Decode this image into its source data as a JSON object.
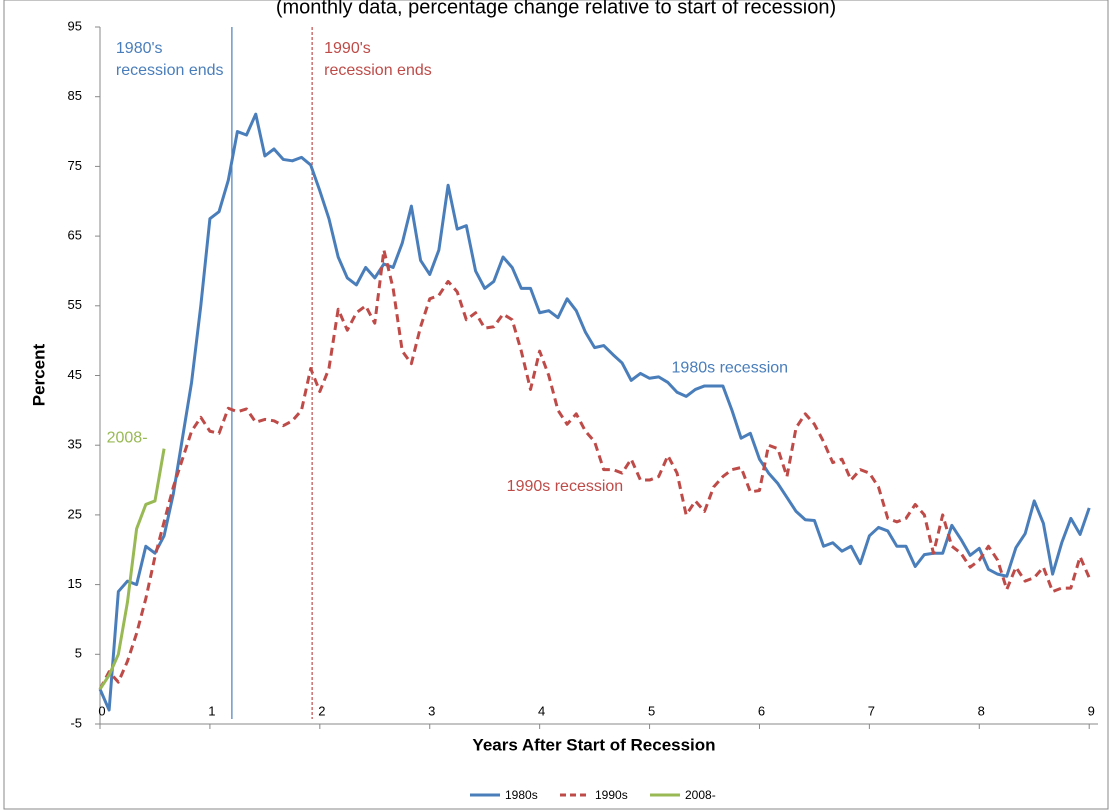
{
  "chart_data": {
    "type": "line",
    "subtitle": "(monthly data, percentage change relative to start of recession)",
    "y_label": "Percent",
    "x_label": "Years After Start of Recession",
    "ylim": [
      -5,
      95
    ],
    "yticks": [
      -5,
      5,
      15,
      25,
      35,
      45,
      55,
      65,
      75,
      85,
      95
    ],
    "xlim": [
      0,
      9.08
    ],
    "xticks": [
      0,
      1,
      2,
      3,
      4,
      5,
      6,
      7,
      8,
      9
    ],
    "grid": false,
    "legend": "bottom",
    "x": [
      0,
      0.083,
      0.167,
      0.25,
      0.333,
      0.417,
      0.5,
      0.583,
      0.667,
      0.75,
      0.833,
      0.917,
      1,
      1.083,
      1.167,
      1.25,
      1.333,
      1.417,
      1.5,
      1.583,
      1.667,
      1.75,
      1.833,
      1.917,
      2,
      2.083,
      2.167,
      2.25,
      2.333,
      2.417,
      2.5,
      2.583,
      2.667,
      2.75,
      2.833,
      2.917,
      3,
      3.083,
      3.167,
      3.25,
      3.333,
      3.417,
      3.5,
      3.583,
      3.667,
      3.75,
      3.833,
      3.917,
      4,
      4.083,
      4.167,
      4.25,
      4.333,
      4.417,
      4.5,
      4.583,
      4.667,
      4.75,
      4.833,
      4.917,
      5,
      5.083,
      5.167,
      5.25,
      5.333,
      5.417,
      5.5,
      5.583,
      5.667,
      5.75,
      5.833,
      5.917,
      6,
      6.083,
      6.167,
      6.25,
      6.333,
      6.417,
      6.5,
      6.583,
      6.667,
      6.75,
      6.833,
      6.917,
      7,
      7.083,
      7.167,
      7.25,
      7.333,
      7.417,
      7.5,
      7.583,
      7.667,
      7.75,
      7.833,
      7.917,
      8,
      8.083,
      8.167,
      8.25,
      8.333,
      8.417,
      8.5,
      8.583,
      8.667,
      8.75,
      8.833,
      8.917,
      9
    ],
    "series": [
      {
        "name": "1980s",
        "color": "#4a7ebb",
        "dash": false,
        "values": [
          0,
          -3,
          14,
          15.5,
          15,
          20.5,
          19.5,
          22,
          28,
          36,
          44,
          55,
          67.5,
          68.5,
          73,
          80,
          79.5,
          82.5,
          76.5,
          77.5,
          76,
          75.8,
          76.3,
          75.2,
          71.5,
          67.5,
          62,
          59,
          58,
          60.5,
          59,
          61,
          60.5,
          64,
          69.3,
          61.5,
          59.5,
          63,
          72.3,
          66,
          66.5,
          60,
          57.5,
          58.5,
          62,
          60.5,
          57.5,
          57.5,
          54,
          54.3,
          53.3,
          56,
          54.3,
          51.2,
          49,
          49.3,
          48,
          46.8,
          44.3,
          45.3,
          44.6,
          44.8,
          44,
          42.6,
          42,
          43,
          43.5,
          43.5,
          43.5,
          40,
          36,
          36.7,
          33,
          31,
          29.5,
          27.5,
          25.5,
          24.3,
          24.2,
          20.5,
          21,
          19.8,
          20.5,
          18,
          22,
          23.2,
          22.7,
          20.5,
          20.5,
          17.6,
          19.3,
          19.5,
          19.5,
          23.5,
          21.5,
          19.2,
          20.2,
          17.2,
          16.5,
          16.2,
          20.3,
          22.3,
          27,
          23.8,
          16.5,
          21,
          24.5,
          22.2,
          26
        ]
      },
      {
        "name": "1990s",
        "color": "#be4b48",
        "dash": true,
        "values": [
          0,
          2.5,
          1,
          4,
          8,
          13,
          19,
          24,
          29,
          33,
          37,
          39,
          37,
          36.7,
          40.3,
          39.8,
          40.2,
          38.3,
          38.7,
          38.5,
          37.8,
          38.5,
          40,
          46,
          42.7,
          46,
          54.5,
          51.5,
          54,
          55,
          52.5,
          63,
          57.5,
          48.5,
          46.7,
          52,
          56,
          56.5,
          58.5,
          57,
          53,
          54,
          51.8,
          52,
          53.8,
          53,
          48.5,
          43,
          48.5,
          45,
          40,
          38,
          39.5,
          37,
          35.5,
          31.5,
          31.5,
          31,
          33,
          30,
          30,
          30.5,
          33.5,
          31,
          25,
          27,
          25.5,
          29,
          30.5,
          31.5,
          31.8,
          28.3,
          28.5,
          35,
          34.5,
          30.5,
          37.5,
          39.5,
          38,
          35.5,
          32.5,
          33,
          30,
          31.5,
          31,
          29,
          24.5,
          24,
          24.5,
          26.5,
          25,
          19.5,
          25,
          20.5,
          19.5,
          17.5,
          18.5,
          20.5,
          18.5,
          14.3,
          17.5,
          15.5,
          16,
          17.5,
          14,
          14.5,
          14.5,
          19,
          16
        ]
      },
      {
        "name": "2008-",
        "color": "#98b954",
        "dash": false,
        "values": [
          0,
          2,
          5,
          12.5,
          23,
          26.5,
          27,
          34.5,
          null,
          null,
          null,
          null,
          null,
          null,
          null,
          null,
          null,
          null,
          null,
          null,
          null,
          null,
          null,
          null,
          null,
          null,
          null,
          null,
          null,
          null,
          null,
          null,
          null,
          null,
          null,
          null,
          null,
          null,
          null,
          null,
          null,
          null,
          null,
          null,
          null,
          null,
          null,
          null,
          null,
          null,
          null,
          null,
          null,
          null,
          null,
          null,
          null,
          null,
          null,
          null,
          null,
          null,
          null,
          null,
          null,
          null,
          null,
          null,
          null,
          null,
          null,
          null,
          null,
          null,
          null,
          null,
          null,
          null,
          null,
          null,
          null,
          null,
          null,
          null,
          null,
          null,
          null,
          null,
          null,
          null,
          null,
          null,
          null,
          null,
          null,
          null,
          null,
          null,
          null,
          null,
          null,
          null,
          null,
          null,
          null,
          null,
          null,
          null,
          null
        ]
      }
    ],
    "annotations": [
      {
        "text": [
          "1980's",
          "recession ends"
        ],
        "x": 1.2,
        "color": "#4a7ebb",
        "dash": false
      },
      {
        "text": [
          "1990's",
          "recession ends"
        ],
        "x": 1.93,
        "color": "#be4b48",
        "dash": true
      }
    ],
    "series_labels": [
      {
        "text": "1980s  recession",
        "x": 5.2,
        "y": 46,
        "color": "#4a7ebb"
      },
      {
        "text": "1990s  recession",
        "x": 3.7,
        "y": 29,
        "color": "#be4b48"
      },
      {
        "text": "2008-",
        "x": 0.06,
        "y": 36,
        "color": "#98b954"
      }
    ]
  }
}
